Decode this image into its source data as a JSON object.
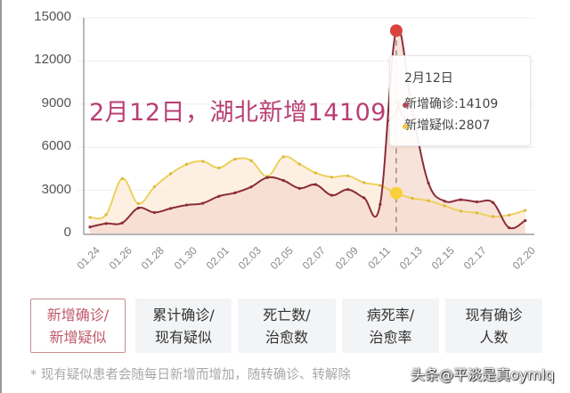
{
  "headline": "2月12日，湖北新增14109人",
  "tooltip": {
    "date": "2月12日",
    "rows": [
      {
        "label": "新增确诊:14109",
        "color": "#b94753"
      },
      {
        "label": "新增疑似:2807",
        "color": "#f5c842"
      }
    ]
  },
  "tabs": [
    {
      "line1": "新增确诊/",
      "line2": "新增疑似",
      "active": true
    },
    {
      "line1": "累计确诊/",
      "line2": "现有疑似",
      "active": false
    },
    {
      "line1": "死亡数/",
      "line2": "治愈数",
      "active": false
    },
    {
      "line1": "病死率/",
      "line2": "治愈率",
      "active": false
    },
    {
      "line1": "现有确诊",
      "line2": "人数",
      "active": false
    }
  ],
  "footnote": "* 现有疑似患者会随每日新增而增加，随转确诊、转解除",
  "watermark": "头条@平淡是真oymlq",
  "colors": {
    "confirmed_line": "#8b2d3a",
    "confirmed_fill": "#f6d9cf",
    "suspected_line": "#ecd25e",
    "suspected_fill": "#fcebd9",
    "highlight_confirmed": "#d9443f",
    "highlight_suspected": "#f7d13a",
    "headline": "#b83f72",
    "active_tab_border": "#c98b8f"
  },
  "chart_data": {
    "type": "line",
    "title": "",
    "xlabel": "",
    "ylabel": "",
    "ylim": [
      0,
      15000
    ],
    "yticks": [
      0,
      3000,
      6000,
      9000,
      12000,
      15000
    ],
    "grid": true,
    "legend": null,
    "x": [
      "01.24",
      "01.25",
      "01.26",
      "01.27",
      "01.28",
      "01.29",
      "01.30",
      "01.31",
      "02.01",
      "02.02",
      "02.03",
      "02.04",
      "02.05",
      "02.06",
      "02.07",
      "02.08",
      "02.09",
      "02.10",
      "02.11",
      "02.12",
      "02.13",
      "02.14",
      "02.15",
      "02.16",
      "02.17",
      "02.18",
      "02.19",
      "02.20"
    ],
    "xtick_labels": [
      "01.24",
      "01.26",
      "01.28",
      "01.30",
      "02.01",
      "02.03",
      "02.05",
      "02.07",
      "02.09",
      "02.11",
      "02.13",
      "02.15",
      "02.17",
      "02.20"
    ],
    "series": [
      {
        "name": "新增确诊",
        "values": [
          450,
          690,
          730,
          1770,
          1460,
          1740,
          1980,
          2100,
          2590,
          2830,
          3240,
          3890,
          3690,
          3140,
          3400,
          2660,
          3060,
          2480,
          2020,
          14109,
          8500,
          3500,
          2250,
          2350,
          2200,
          2150,
          400,
          900
        ]
      },
      {
        "name": "新增疑似",
        "values": [
          1120,
          1300,
          3810,
          2080,
          3250,
          4150,
          4810,
          5020,
          4560,
          5170,
          5070,
          3970,
          5330,
          4830,
          4210,
          3920,
          4010,
          3540,
          3340,
          2807,
          2450,
          2280,
          1920,
          1560,
          1430,
          1180,
          1280,
          1610
        ]
      }
    ],
    "highlight": {
      "x": "02.12",
      "confirmed": 14109,
      "suspected": 2807
    }
  }
}
